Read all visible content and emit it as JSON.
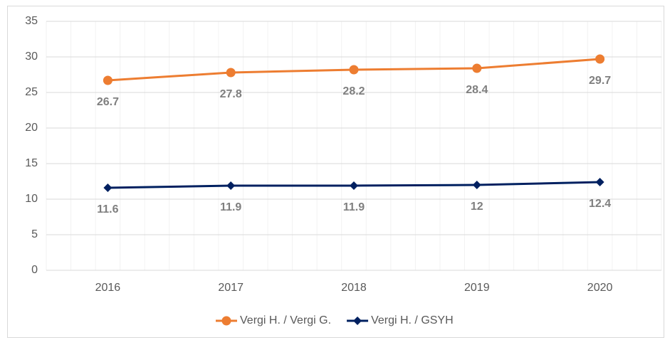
{
  "chart_data": {
    "type": "line",
    "categories": [
      "2016",
      "2017",
      "2018",
      "2019",
      "2020"
    ],
    "series": [
      {
        "name": "Vergi H. / Vergi G.",
        "color": "#ed7d31",
        "marker": "circle",
        "values": [
          26.7,
          27.8,
          28.2,
          28.4,
          29.7
        ]
      },
      {
        "name": "Vergi H. / GSYH",
        "color": "#002060",
        "marker": "diamond",
        "values": [
          11.6,
          11.9,
          11.9,
          12,
          12.4
        ]
      }
    ],
    "ylim": [
      0,
      35
    ],
    "yticks": [
      0,
      5,
      10,
      15,
      20,
      25,
      30,
      35
    ],
    "grid": true,
    "legend": "bottom"
  }
}
